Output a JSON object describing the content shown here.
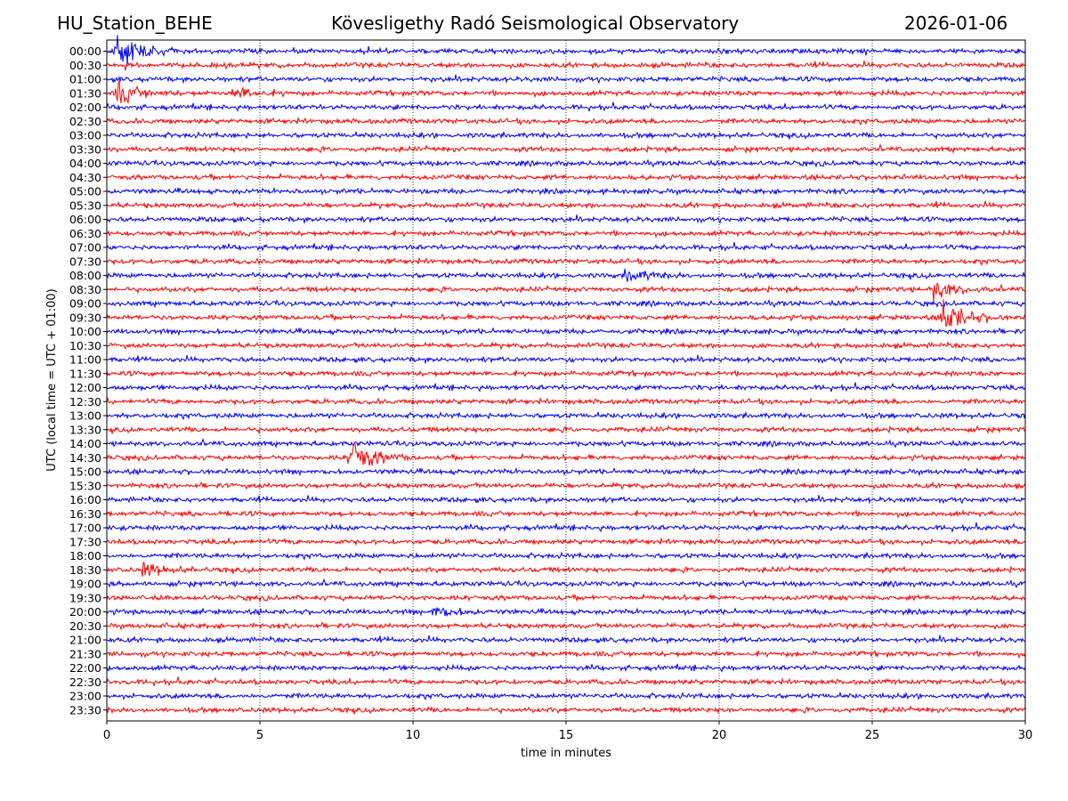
{
  "header": {
    "station": "HU_Station_BEHE",
    "observatory": "Kövesligethy Radó Seismological Observatory",
    "date": "2026-01-06"
  },
  "chart_data": {
    "type": "line",
    "title": "Kövesligethy Radó Seismological Observatory",
    "xlabel": "time in minutes",
    "ylabel": "UTC (local time = UTC + 01:00)",
    "xlim": [
      0,
      30
    ],
    "xticks": [
      0,
      5,
      10,
      15,
      20,
      25,
      30
    ],
    "grid": "vertical dotted lines at x ticks",
    "trace_colors": [
      "#0000ff",
      "#ff0000"
    ],
    "rows": [
      "00:00",
      "00:30",
      "01:00",
      "01:30",
      "02:00",
      "02:30",
      "03:00",
      "03:30",
      "04:00",
      "04:30",
      "05:00",
      "05:30",
      "06:00",
      "06:30",
      "07:00",
      "07:30",
      "08:00",
      "08:30",
      "09:00",
      "09:30",
      "10:00",
      "10:30",
      "11:00",
      "11:30",
      "12:00",
      "12:30",
      "13:00",
      "13:30",
      "14:00",
      "14:30",
      "15:00",
      "15:30",
      "16:00",
      "16:30",
      "17:00",
      "17:30",
      "18:00",
      "18:30",
      "19:00",
      "19:30",
      "20:00",
      "20:30",
      "21:00",
      "21:30",
      "22:00",
      "22:30",
      "23:00",
      "23:30"
    ],
    "events": [
      {
        "row": "00:00",
        "minute": 0.35,
        "amplitude": "very high"
      },
      {
        "row": "01:30",
        "minute": 0.4,
        "amplitude": "high"
      },
      {
        "row": "01:30",
        "minute": 4.2,
        "amplitude": "medium"
      },
      {
        "row": "08:00",
        "minute": 17.0,
        "amplitude": "medium"
      },
      {
        "row": "08:30",
        "minute": 27.0,
        "amplitude": "high"
      },
      {
        "row": "09:30",
        "minute": 27.3,
        "amplitude": "very high"
      },
      {
        "row": "14:30",
        "minute": 8.0,
        "amplitude": "very high"
      },
      {
        "row": "18:30",
        "minute": 1.2,
        "amplitude": "medium"
      },
      {
        "row": "20:00",
        "minute": 10.7,
        "amplitude": "medium"
      }
    ]
  }
}
